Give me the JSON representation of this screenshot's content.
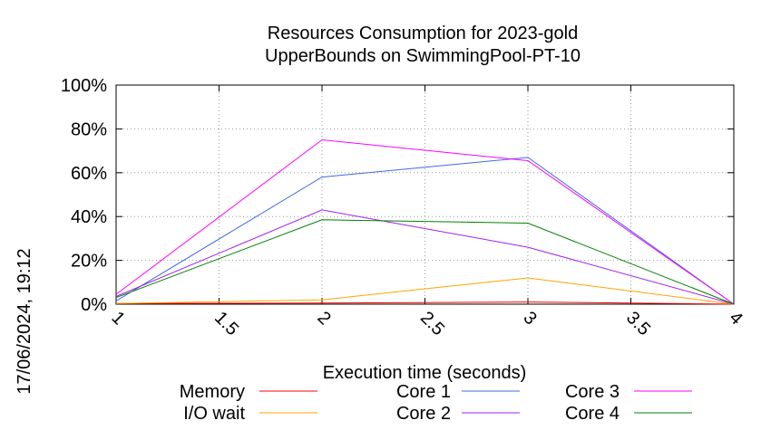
{
  "chart_data": {
    "type": "line",
    "title": "Resources Consumption for 2023-gold",
    "subtitle": "UpperBounds on SwimmingPool-PT-10",
    "xlabel": "Execution time (seconds)",
    "ylabel": "",
    "side_label": "17/06/2024, 19:12",
    "xlim": [
      1,
      4
    ],
    "ylim": [
      0,
      100
    ],
    "grid": true,
    "legend_placement": "bottom",
    "x_ticks": [
      "1",
      "1.5",
      "2",
      "2.5",
      "3",
      "3.5",
      "4"
    ],
    "y_ticks": [
      "0%",
      "20%",
      "40%",
      "60%",
      "80%",
      "100%"
    ],
    "x_tick_values": [
      1,
      1.5,
      2,
      2.5,
      3,
      3.5,
      4
    ],
    "y_tick_values": [
      0,
      20,
      40,
      60,
      80,
      100
    ],
    "series": [
      {
        "name": "Memory",
        "color": "#ff0000",
        "x": [
          1,
          2,
          3,
          4
        ],
        "y": [
          0.3,
          0.5,
          1.0,
          0
        ]
      },
      {
        "name": "I/O wait",
        "color": "#ffa500",
        "x": [
          1,
          2,
          3,
          4
        ],
        "y": [
          0.3,
          2.0,
          12.0,
          0
        ]
      },
      {
        "name": "Core 1",
        "color": "#4169e1",
        "x": [
          1,
          2,
          3,
          4
        ],
        "y": [
          1.5,
          58.0,
          67.0,
          0
        ]
      },
      {
        "name": "Core 2",
        "color": "#a020f0",
        "x": [
          1,
          2,
          3,
          4
        ],
        "y": [
          3.5,
          43.0,
          26.0,
          0
        ]
      },
      {
        "name": "Core 3",
        "color": "#ff00ff",
        "x": [
          1,
          2,
          3,
          4
        ],
        "y": [
          4.5,
          75.0,
          65.5,
          0
        ]
      },
      {
        "name": "Core 4",
        "color": "#008000",
        "x": [
          1,
          2,
          3,
          4
        ],
        "y": [
          3.0,
          38.5,
          37.0,
          0
        ]
      }
    ]
  }
}
